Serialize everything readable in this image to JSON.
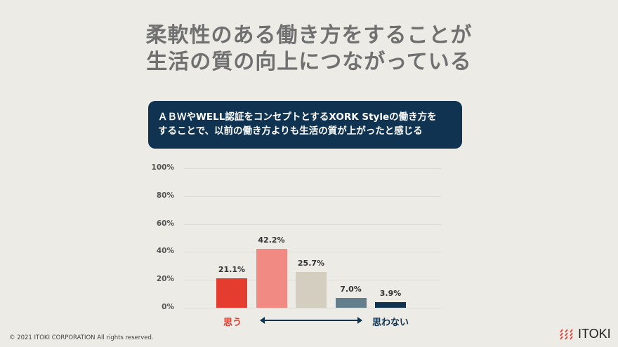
{
  "title": {
    "line1": "柔軟性のある働き方をすることが",
    "line2": "生活の質の向上につながっている"
  },
  "callout": {
    "line1": "ＡＢＷやWELL認証をコンセプトとするXORK Styleの働き方を",
    "line2": "することで、以前の働き方よりも生活の質が上がったと感じる"
  },
  "chart_data": {
    "type": "bar",
    "title": "ＡＢＷやWELL認証をコンセプトとするXORK Styleの働き方をすることで、以前の働き方よりも生活の質が上がったと感じる",
    "categories": [
      "思う",
      "",
      "",
      "",
      "思わない"
    ],
    "values": [
      21.1,
      42.2,
      25.7,
      7.0,
      3.9
    ],
    "value_labels": [
      "21.1%",
      "42.2%",
      "25.7%",
      "7.0%",
      "3.9%"
    ],
    "colors": [
      "#e43d30",
      "#f08a82",
      "#d4cec1",
      "#647f8c",
      "#0f3350"
    ],
    "yticks": [
      "0%",
      "20%",
      "40%",
      "60%",
      "80%",
      "100%"
    ],
    "ylim": [
      0,
      100
    ],
    "xlabel": "",
    "ylabel": "",
    "grid": true,
    "scale_labels": {
      "left": "思う",
      "right": "思わない"
    }
  },
  "footer": {
    "copyright": "© 2021  ITOKI CORPORATION  All rights reserved.",
    "logo": "ITOKI"
  }
}
